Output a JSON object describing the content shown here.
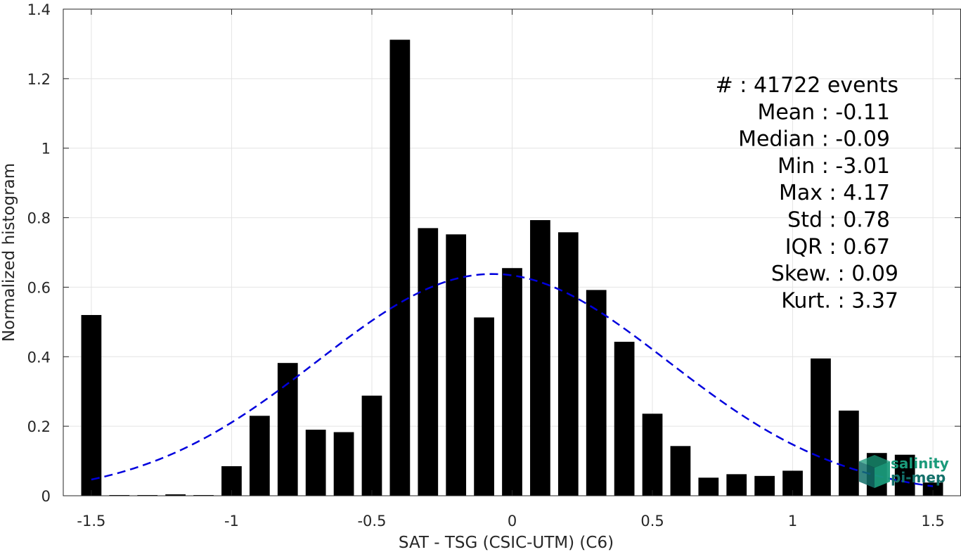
{
  "chart_data": {
    "type": "bar",
    "xlabel": "SAT - TSG (CSIC-UTM) (C6)",
    "ylabel": "Normalized histogram",
    "xlim": [
      -1.6,
      1.6
    ],
    "ylim": [
      0,
      1.4
    ],
    "xticks": [
      -1.5,
      -1,
      -0.5,
      0,
      0.5,
      1,
      1.5
    ],
    "xtick_labels": [
      "-1.5",
      "-1",
      "-0.5",
      "0",
      "0.5",
      "1",
      "1.5"
    ],
    "yticks": [
      0,
      0.2,
      0.4,
      0.6,
      0.8,
      1,
      1.2,
      1.4
    ],
    "ytick_labels": [
      "0",
      "0.2",
      "0.4",
      "0.6",
      "0.8",
      "1",
      "1.2",
      "1.4"
    ],
    "grid": true,
    "bin_width": 0.1,
    "x": [
      -1.5,
      -1.4,
      -1.3,
      -1.2,
      -1.1,
      -1.0,
      -0.9,
      -0.8,
      -0.7,
      -0.6,
      -0.5,
      -0.4,
      -0.3,
      -0.2,
      -0.1,
      0.0,
      0.1,
      0.2,
      0.3,
      0.4,
      0.5,
      0.6,
      0.7,
      0.8,
      0.9,
      1.0,
      1.1,
      1.2,
      1.3,
      1.4,
      1.5
    ],
    "values": [
      0.52,
      0.002,
      0.002,
      0.004,
      0.002,
      0.085,
      0.23,
      0.382,
      0.19,
      0.183,
      0.288,
      1.312,
      0.77,
      0.752,
      0.513,
      0.655,
      0.793,
      0.758,
      0.592,
      0.443,
      0.236,
      0.143,
      0.052,
      0.062,
      0.057,
      0.072,
      0.395,
      0.245,
      0.123,
      0.118,
      0.038
    ],
    "bar_color": "#000000",
    "fit": {
      "type": "normal",
      "mean": -0.07,
      "std": 0.625,
      "peak": 0.638,
      "x_range": [
        -1.5,
        1.5
      ],
      "color": "#0000dd",
      "style": "dashed"
    },
    "stats": [
      {
        "label": "#  : 41722 events"
      },
      {
        "label": "Mean : -0.11"
      },
      {
        "label": "Median : -0.09"
      },
      {
        "label": "Min : -3.01"
      },
      {
        "label": "Max : 4.17"
      },
      {
        "label": "Std : 0.78"
      },
      {
        "label": "IQR : 0.67"
      },
      {
        "label": "Skew. : 0.09"
      },
      {
        "label": "Kurt. : 3.37"
      }
    ]
  },
  "logo": {
    "line1": "salinity",
    "line2": "pi-mep",
    "color_primary": "#1a9a7a",
    "color_dark": "#13706a"
  }
}
